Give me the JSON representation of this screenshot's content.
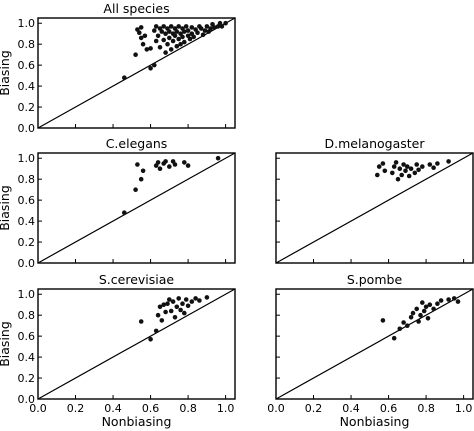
{
  "chart_data": [
    {
      "type": "scatter",
      "title": "All species",
      "xlabel": "",
      "ylabel": "Biasing",
      "xlim": [
        0.0,
        1.05
      ],
      "ylim": [
        0.0,
        1.05
      ],
      "xticks": [],
      "yticks": [
        "0.0",
        "0.2",
        "0.4",
        "0.6",
        "0.8",
        "1.0"
      ],
      "reference_line": "y = x",
      "points": [
        [
          0.46,
          0.48
        ],
        [
          0.52,
          0.7
        ],
        [
          0.53,
          0.94
        ],
        [
          0.54,
          0.91
        ],
        [
          0.55,
          0.96
        ],
        [
          0.55,
          0.86
        ],
        [
          0.56,
          0.8
        ],
        [
          0.57,
          0.88
        ],
        [
          0.58,
          0.75
        ],
        [
          0.6,
          0.76
        ],
        [
          0.6,
          0.57
        ],
        [
          0.62,
          0.6
        ],
        [
          0.62,
          0.93
        ],
        [
          0.63,
          0.97
        ],
        [
          0.63,
          0.83
        ],
        [
          0.64,
          0.88
        ],
        [
          0.65,
          0.95
        ],
        [
          0.65,
          0.77
        ],
        [
          0.66,
          0.92
        ],
        [
          0.67,
          0.97
        ],
        [
          0.67,
          0.84
        ],
        [
          0.68,
          0.9
        ],
        [
          0.68,
          0.72
        ],
        [
          0.69,
          0.95
        ],
        [
          0.69,
          0.8
        ],
        [
          0.7,
          0.92
        ],
        [
          0.7,
          0.86
        ],
        [
          0.71,
          0.97
        ],
        [
          0.71,
          0.75
        ],
        [
          0.72,
          0.9
        ],
        [
          0.72,
          0.83
        ],
        [
          0.73,
          0.95
        ],
        [
          0.73,
          0.88
        ],
        [
          0.74,
          0.92
        ],
        [
          0.74,
          0.78
        ],
        [
          0.75,
          0.97
        ],
        [
          0.75,
          0.85
        ],
        [
          0.76,
          0.9
        ],
        [
          0.76,
          0.8
        ],
        [
          0.77,
          0.95
        ],
        [
          0.77,
          0.87
        ],
        [
          0.78,
          0.92
        ],
        [
          0.78,
          0.82
        ],
        [
          0.79,
          0.97
        ],
        [
          0.8,
          0.88
        ],
        [
          0.8,
          0.93
        ],
        [
          0.81,
          0.85
        ],
        [
          0.82,
          0.96
        ],
        [
          0.82,
          0.9
        ],
        [
          0.83,
          0.87
        ],
        [
          0.84,
          0.94
        ],
        [
          0.85,
          0.91
        ],
        [
          0.86,
          0.97
        ],
        [
          0.87,
          0.95
        ],
        [
          0.88,
          0.89
        ],
        [
          0.89,
          0.93
        ],
        [
          0.9,
          0.97
        ],
        [
          0.91,
          0.92
        ],
        [
          0.92,
          0.95
        ],
        [
          0.93,
          0.99
        ],
        [
          0.94,
          0.96
        ],
        [
          0.96,
          0.97
        ],
        [
          0.97,
          1.0
        ],
        [
          0.98,
          0.97
        ],
        [
          1.0,
          1.0
        ]
      ]
    },
    {
      "type": "scatter",
      "title": "C.elegans",
      "xlabel": "",
      "ylabel": "Biasing",
      "xlim": [
        0.0,
        1.05
      ],
      "ylim": [
        0.0,
        1.05
      ],
      "xticks": [],
      "yticks": [
        "0.0",
        "0.2",
        "0.4",
        "0.6",
        "0.8",
        "1.0"
      ],
      "reference_line": "y = x",
      "points": [
        [
          0.46,
          0.48
        ],
        [
          0.52,
          0.7
        ],
        [
          0.53,
          0.94
        ],
        [
          0.55,
          0.8
        ],
        [
          0.56,
          0.88
        ],
        [
          0.63,
          0.93
        ],
        [
          0.64,
          0.96
        ],
        [
          0.65,
          0.9
        ],
        [
          0.67,
          0.95
        ],
        [
          0.68,
          0.97
        ],
        [
          0.7,
          0.92
        ],
        [
          0.72,
          0.97
        ],
        [
          0.73,
          0.94
        ],
        [
          0.78,
          0.96
        ],
        [
          0.8,
          0.93
        ],
        [
          0.96,
          1.0
        ]
      ]
    },
    {
      "type": "scatter",
      "title": "D.melanogaster",
      "xlabel": "",
      "ylabel": "",
      "xlim": [
        0.0,
        1.05
      ],
      "ylim": [
        0.0,
        1.05
      ],
      "xticks": [],
      "yticks": [],
      "reference_line": "y = x",
      "points": [
        [
          0.54,
          0.84
        ],
        [
          0.55,
          0.92
        ],
        [
          0.57,
          0.95
        ],
        [
          0.58,
          0.88
        ],
        [
          0.62,
          0.86
        ],
        [
          0.63,
          0.92
        ],
        [
          0.64,
          0.96
        ],
        [
          0.65,
          0.8
        ],
        [
          0.66,
          0.9
        ],
        [
          0.67,
          0.84
        ],
        [
          0.68,
          0.94
        ],
        [
          0.69,
          0.88
        ],
        [
          0.7,
          0.92
        ],
        [
          0.71,
          0.83
        ],
        [
          0.72,
          0.9
        ],
        [
          0.74,
          0.86
        ],
        [
          0.75,
          0.94
        ],
        [
          0.76,
          0.89
        ],
        [
          0.78,
          0.92
        ],
        [
          0.82,
          0.94
        ],
        [
          0.84,
          0.91
        ],
        [
          0.86,
          0.95
        ],
        [
          0.92,
          0.97
        ]
      ]
    },
    {
      "type": "scatter",
      "title": "S.cerevisiae",
      "xlabel": "Nonbiasing",
      "ylabel": "Biasing",
      "xlim": [
        0.0,
        1.05
      ],
      "ylim": [
        0.0,
        1.05
      ],
      "xticks": [
        "0.0",
        "0.2",
        "0.4",
        "0.6",
        "0.8",
        "1.0"
      ],
      "yticks": [
        "0.0",
        "0.2",
        "0.4",
        "0.6",
        "0.8",
        "1.0"
      ],
      "reference_line": "y = x",
      "points": [
        [
          0.55,
          0.74
        ],
        [
          0.6,
          0.57
        ],
        [
          0.63,
          0.65
        ],
        [
          0.64,
          0.8
        ],
        [
          0.65,
          0.88
        ],
        [
          0.66,
          0.75
        ],
        [
          0.67,
          0.9
        ],
        [
          0.68,
          0.83
        ],
        [
          0.69,
          0.91
        ],
        [
          0.7,
          0.95
        ],
        [
          0.71,
          0.84
        ],
        [
          0.72,
          0.93
        ],
        [
          0.73,
          0.78
        ],
        [
          0.74,
          0.88
        ],
        [
          0.75,
          0.96
        ],
        [
          0.76,
          0.85
        ],
        [
          0.77,
          0.91
        ],
        [
          0.78,
          0.82
        ],
        [
          0.79,
          0.95
        ],
        [
          0.8,
          0.89
        ],
        [
          0.82,
          0.93
        ],
        [
          0.84,
          0.96
        ],
        [
          0.86,
          0.94
        ],
        [
          0.9,
          0.97
        ]
      ]
    },
    {
      "type": "scatter",
      "title": "S.pombe",
      "xlabel": "Nonbiasing",
      "ylabel": "",
      "xlim": [
        0.0,
        1.05
      ],
      "ylim": [
        0.0,
        1.05
      ],
      "xticks": [
        "0.0",
        "0.2",
        "0.4",
        "0.6",
        "0.8",
        "1.0"
      ],
      "yticks": [],
      "reference_line": "y = x",
      "points": [
        [
          0.57,
          0.75
        ],
        [
          0.63,
          0.58
        ],
        [
          0.66,
          0.67
        ],
        [
          0.68,
          0.73
        ],
        [
          0.7,
          0.7
        ],
        [
          0.72,
          0.78
        ],
        [
          0.73,
          0.82
        ],
        [
          0.75,
          0.86
        ],
        [
          0.76,
          0.74
        ],
        [
          0.77,
          0.8
        ],
        [
          0.78,
          0.92
        ],
        [
          0.79,
          0.84
        ],
        [
          0.8,
          0.88
        ],
        [
          0.81,
          0.77
        ],
        [
          0.82,
          0.9
        ],
        [
          0.84,
          0.86
        ],
        [
          0.86,
          0.91
        ],
        [
          0.88,
          0.94
        ],
        [
          0.92,
          0.95
        ],
        [
          0.95,
          0.96
        ],
        [
          0.97,
          0.93
        ]
      ]
    }
  ]
}
